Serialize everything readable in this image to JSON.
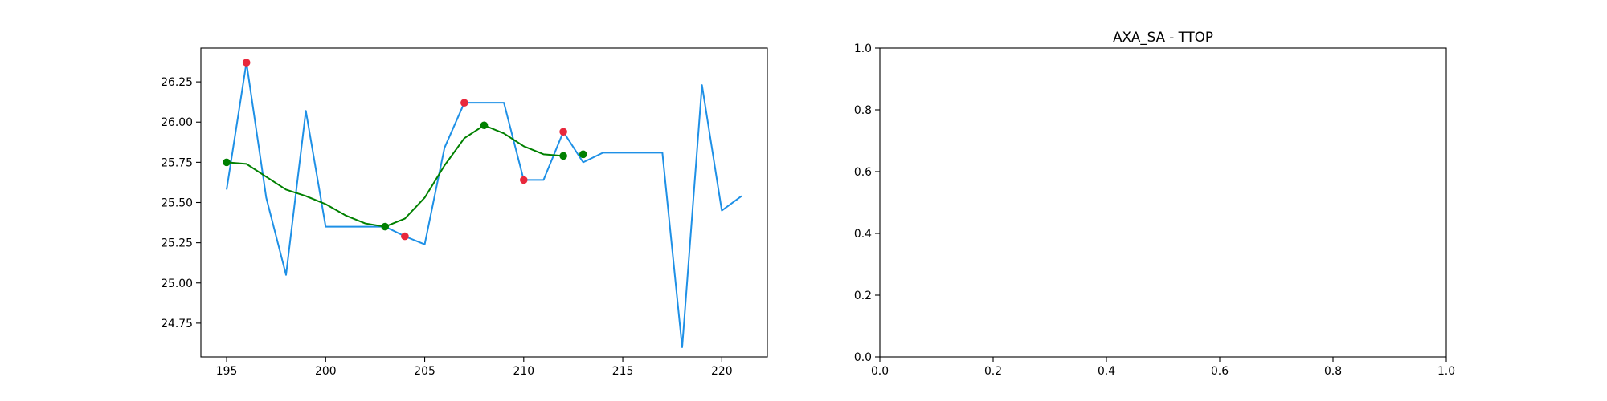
{
  "chart_data": [
    {
      "type": "line",
      "title": "",
      "xlabel": "",
      "ylabel": "",
      "xlim": [
        193.7,
        222.3
      ],
      "ylim": [
        24.54,
        26.46
      ],
      "xticks": [
        195,
        200,
        205,
        210,
        215,
        220
      ],
      "xtick_labels": [
        "195",
        "200",
        "205",
        "210",
        "215",
        "220"
      ],
      "yticks": [
        24.75,
        25.0,
        25.25,
        25.5,
        25.75,
        26.0,
        26.25
      ],
      "ytick_labels": [
        "24.75",
        "25.00",
        "25.25",
        "25.50",
        "25.75",
        "26.00",
        "26.25"
      ],
      "grid": false,
      "series": [
        {
          "kind": "line",
          "color": "#1e90e6",
          "x": [
            195,
            196,
            197,
            198,
            199,
            200,
            201,
            202,
            203,
            204,
            205,
            206,
            207,
            208,
            209,
            210,
            211,
            212,
            213,
            214,
            215,
            216,
            217,
            218,
            219,
            220,
            221
          ],
          "y": [
            25.58,
            26.37,
            25.53,
            25.05,
            26.07,
            25.35,
            25.35,
            25.35,
            25.35,
            25.29,
            25.24,
            25.84,
            26.12,
            26.12,
            26.12,
            25.64,
            25.64,
            25.94,
            25.75,
            25.81,
            25.81,
            25.81,
            25.81,
            24.6,
            26.23,
            25.45,
            25.54
          ]
        },
        {
          "kind": "line",
          "color": "#008000",
          "x": [
            195,
            196,
            197,
            198,
            199,
            200,
            201,
            202,
            203,
            204,
            205,
            206,
            207,
            208,
            209,
            210,
            211,
            212
          ],
          "y": [
            25.75,
            25.74,
            25.66,
            25.58,
            25.54,
            25.49,
            25.42,
            25.37,
            25.35,
            25.4,
            25.53,
            25.73,
            25.9,
            25.98,
            25.93,
            25.85,
            25.8,
            25.79
          ]
        },
        {
          "kind": "scatter",
          "color": "#e8283c",
          "x": [
            196,
            204,
            207,
            210,
            212
          ],
          "y": [
            26.37,
            25.29,
            26.12,
            25.64,
            25.94
          ]
        },
        {
          "kind": "scatter",
          "color": "#008000",
          "x": [
            195,
            203,
            208,
            212,
            213
          ],
          "y": [
            25.75,
            25.35,
            25.98,
            25.79,
            25.8
          ]
        }
      ]
    },
    {
      "type": "line",
      "title": "AXA_SA - TTOP",
      "xlabel": "",
      "ylabel": "",
      "xlim": [
        0,
        1
      ],
      "ylim": [
        0,
        1
      ],
      "xticks": [
        0,
        0.2,
        0.4,
        0.6,
        0.8,
        1.0
      ],
      "xtick_labels": [
        "0.0",
        "0.2",
        "0.4",
        "0.6",
        "0.8",
        "1.0"
      ],
      "yticks": [
        0,
        0.2,
        0.4,
        0.6,
        0.8,
        1.0
      ],
      "ytick_labels": [
        "0.0",
        "0.2",
        "0.4",
        "0.6",
        "0.8",
        "1.0"
      ],
      "grid": false,
      "series": []
    }
  ]
}
